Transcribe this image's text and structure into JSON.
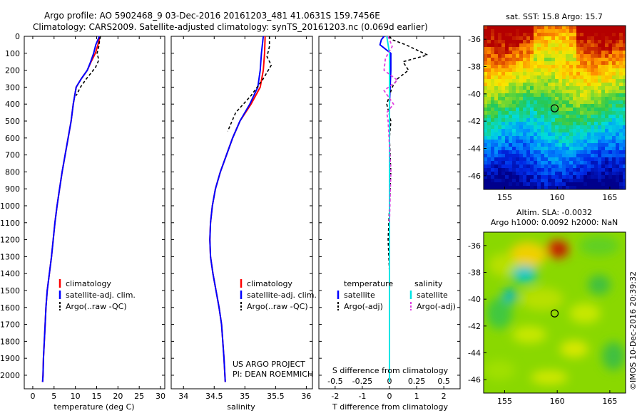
{
  "header": {
    "line1": "Argo profile: AO 5902468_9 03-Dec-2016 20161203_481 41.0631S 159.7456E",
    "line2": "Climatology: CARS2009. Satellite-adjusted climatology: synTS_20161203.nc (0.069d earlier)"
  },
  "colors": {
    "climatology": "#ff0000",
    "satellite": "#0000ff",
    "argo": "#000000",
    "sal_satellite": "#00e5e5",
    "sal_argo": "#e040e0"
  },
  "depth_ticks": [
    "0",
    "100",
    "200",
    "300",
    "400",
    "500",
    "600",
    "700",
    "800",
    "900",
    "1000",
    "1100",
    "1200",
    "1300",
    "1400",
    "1500",
    "1600",
    "1700",
    "1800",
    "1900",
    "2000"
  ],
  "chart_data": [
    {
      "type": "line",
      "id": "temperature",
      "xlabel": "temperature (deg C)",
      "ylabel": "depth",
      "xlim": [
        -2,
        31
      ],
      "ylim": [
        2080,
        0
      ],
      "xticks": [
        "0",
        "5",
        "10",
        "15",
        "20",
        "25",
        "30"
      ],
      "legend": {
        "position": "lower-center",
        "entries": [
          "climatology",
          "satellite-adj. clim.",
          "Argo(..raw -QC)"
        ]
      },
      "series": [
        {
          "name": "climatology",
          "x": [
            15.8,
            15.6,
            15.3,
            14.7,
            13.7,
            12.8,
            11.4,
            10.2,
            9.5,
            9.0,
            8.3,
            7.6,
            6.9,
            6.3,
            5.7,
            5.2,
            4.8,
            4.4,
            3.9,
            3.4,
            3.1,
            2.9,
            2.7,
            2.5,
            2.4,
            2.3
          ],
          "y": [
            0,
            20,
            50,
            100,
            150,
            200,
            250,
            300,
            400,
            500,
            600,
            700,
            800,
            900,
            1000,
            1100,
            1200,
            1300,
            1400,
            1500,
            1600,
            1700,
            1800,
            1900,
            2000,
            2040
          ]
        },
        {
          "name": "satellite-adj. clim.",
          "x": [
            15.6,
            15.3,
            14.8,
            14.3,
            13.6,
            12.8,
            11.4,
            10.2,
            9.5,
            9.0,
            8.3,
            7.6,
            6.9,
            6.3,
            5.7,
            5.2,
            4.8,
            4.4,
            3.9,
            3.4,
            3.1,
            2.9,
            2.7,
            2.5,
            2.4,
            2.3
          ],
          "y": [
            0,
            20,
            50,
            100,
            150,
            200,
            250,
            300,
            400,
            500,
            600,
            700,
            800,
            900,
            1000,
            1100,
            1200,
            1300,
            1400,
            1500,
            1600,
            1700,
            1800,
            1900,
            2000,
            2040
          ]
        },
        {
          "name": "Argo(..raw -QC)",
          "x": [
            15.9,
            15.7,
            15.5,
            15.1,
            15.5,
            14.8,
            13.9,
            12.6,
            11.2,
            10.2
          ],
          "y": [
            0,
            20,
            60,
            100,
            140,
            180,
            210,
            250,
            300,
            350
          ]
        }
      ]
    },
    {
      "type": "line",
      "id": "salinity",
      "xlabel": "salinity",
      "ylabel": "depth",
      "xlim": [
        33.8,
        36.1
      ],
      "ylim": [
        2080,
        0
      ],
      "xticks": [
        "34",
        "34.5",
        "35",
        "35.5",
        "36"
      ],
      "legend": {
        "position": "lower-right",
        "entries": [
          "climatology",
          "satellite-adj. clim.",
          "Argo(..raw -QC)"
        ]
      },
      "annotations": [
        "US ARGO PROJECT",
        "PI: DEAN ROEMMICH"
      ],
      "series": [
        {
          "name": "climatology",
          "x": [
            35.33,
            35.32,
            35.3,
            35.25,
            35.1,
            34.92,
            34.8,
            34.7,
            34.6,
            34.52,
            34.47,
            34.44,
            34.43,
            34.44,
            34.48,
            34.53,
            34.58,
            34.62,
            34.66,
            34.68
          ],
          "y": [
            0,
            100,
            200,
            300,
            400,
            500,
            600,
            700,
            800,
            900,
            1000,
            1100,
            1200,
            1300,
            1400,
            1500,
            1600,
            1700,
            1900,
            2040
          ]
        },
        {
          "name": "satellite-adj. clim.",
          "x": [
            35.3,
            35.27,
            35.25,
            35.21,
            35.08,
            34.92,
            34.8,
            34.7,
            34.6,
            34.52,
            34.47,
            34.44,
            34.43,
            34.44,
            34.48,
            34.53,
            34.58,
            34.62,
            34.66,
            34.68
          ],
          "y": [
            0,
            100,
            200,
            300,
            400,
            500,
            600,
            700,
            800,
            900,
            1000,
            1100,
            1200,
            1300,
            1400,
            1500,
            1600,
            1700,
            1900,
            2040
          ]
        },
        {
          "name": "Argo(..raw -QC)",
          "x": [
            35.4,
            35.4,
            35.36,
            35.43,
            35.3,
            35.1,
            34.85,
            34.72
          ],
          "y": [
            0,
            60,
            120,
            170,
            250,
            350,
            450,
            560
          ]
        }
      ]
    },
    {
      "type": "line",
      "id": "difference",
      "xlabel": "T difference from climatology",
      "xlabel_top": "S difference from climatology",
      "xlim": [
        -2.6,
        2.6
      ],
      "ylim": [
        2080,
        0
      ],
      "xticks": [
        "-2",
        "-1",
        "0",
        "1",
        "2"
      ],
      "s_ticks": [
        "-0.5",
        "-0.25",
        "0",
        "0.25",
        "0.5"
      ],
      "legend": {
        "position": "lower-center",
        "headers": [
          "temperature",
          "salinity"
        ],
        "entries": [
          "satellite",
          "Argo(-adj)",
          "satellite",
          "Argo(-adj)"
        ]
      },
      "series": [
        {
          "name": "temperature satellite",
          "x": [
            -0.2,
            -0.3,
            -0.35,
            0.05,
            0.05,
            0.0,
            0.0,
            0.0,
            0.0,
            0.0,
            0.0
          ],
          "y": [
            0,
            20,
            50,
            100,
            200,
            400,
            600,
            800,
            1200,
            1600,
            2040
          ]
        },
        {
          "name": "temperature Argo(-adj)",
          "x": [
            0.0,
            0.1,
            0.6,
            1.4,
            0.5,
            0.7,
            0.3,
            0.1,
            -0.1,
            0.05,
            0.0,
            0.05,
            -0.05,
            0.0
          ],
          "y": [
            0,
            20,
            50,
            110,
            150,
            200,
            250,
            300,
            400,
            500,
            600,
            800,
            1200,
            1400
          ]
        },
        {
          "name": "salinity satellite",
          "x": [
            -0.1,
            -0.05,
            0.0,
            0.0,
            0.0,
            0.0,
            0.0,
            0.0
          ],
          "y": [
            0,
            50,
            100,
            300,
            600,
            1000,
            1500,
            2040
          ]
        },
        {
          "name": "salinity Argo(-adj)",
          "x": [
            -0.05,
            0.1,
            -0.15,
            -0.2,
            0.3,
            -0.2,
            0.15,
            -0.1,
            -0.05,
            0.05,
            0.0
          ],
          "y": [
            0,
            60,
            130,
            200,
            260,
            320,
            400,
            450,
            500,
            800,
            1100
          ]
        }
      ]
    },
    {
      "type": "heatmap",
      "id": "sst_map",
      "title": "sat. SST: 15.8  Argo: 15.7",
      "xlim": [
        153,
        166.5
      ],
      "ylim": [
        -47,
        -35
      ],
      "xticks": [
        "155",
        "160",
        "165"
      ],
      "yticks": [
        "-36",
        "-38",
        "-40",
        "-42",
        "-44",
        "-46"
      ],
      "marker": {
        "lon": 159.75,
        "lat": -41.06
      }
    },
    {
      "type": "heatmap",
      "id": "sla_map",
      "title_line1": "Altim. SLA: -0.0032",
      "title_line2": "Argo h1000: 0.0092  h2000: NaN",
      "xlim": [
        153,
        166.5
      ],
      "ylim": [
        -47,
        -35
      ],
      "xticks": [
        "155",
        "160",
        "165"
      ],
      "yticks": [
        "-36",
        "-38",
        "-40",
        "-42",
        "-44",
        "-46"
      ],
      "marker": {
        "lon": 159.75,
        "lat": -41.06
      }
    }
  ],
  "side_stamp": "©IMOS 10-Dec-2016 20:39:32"
}
